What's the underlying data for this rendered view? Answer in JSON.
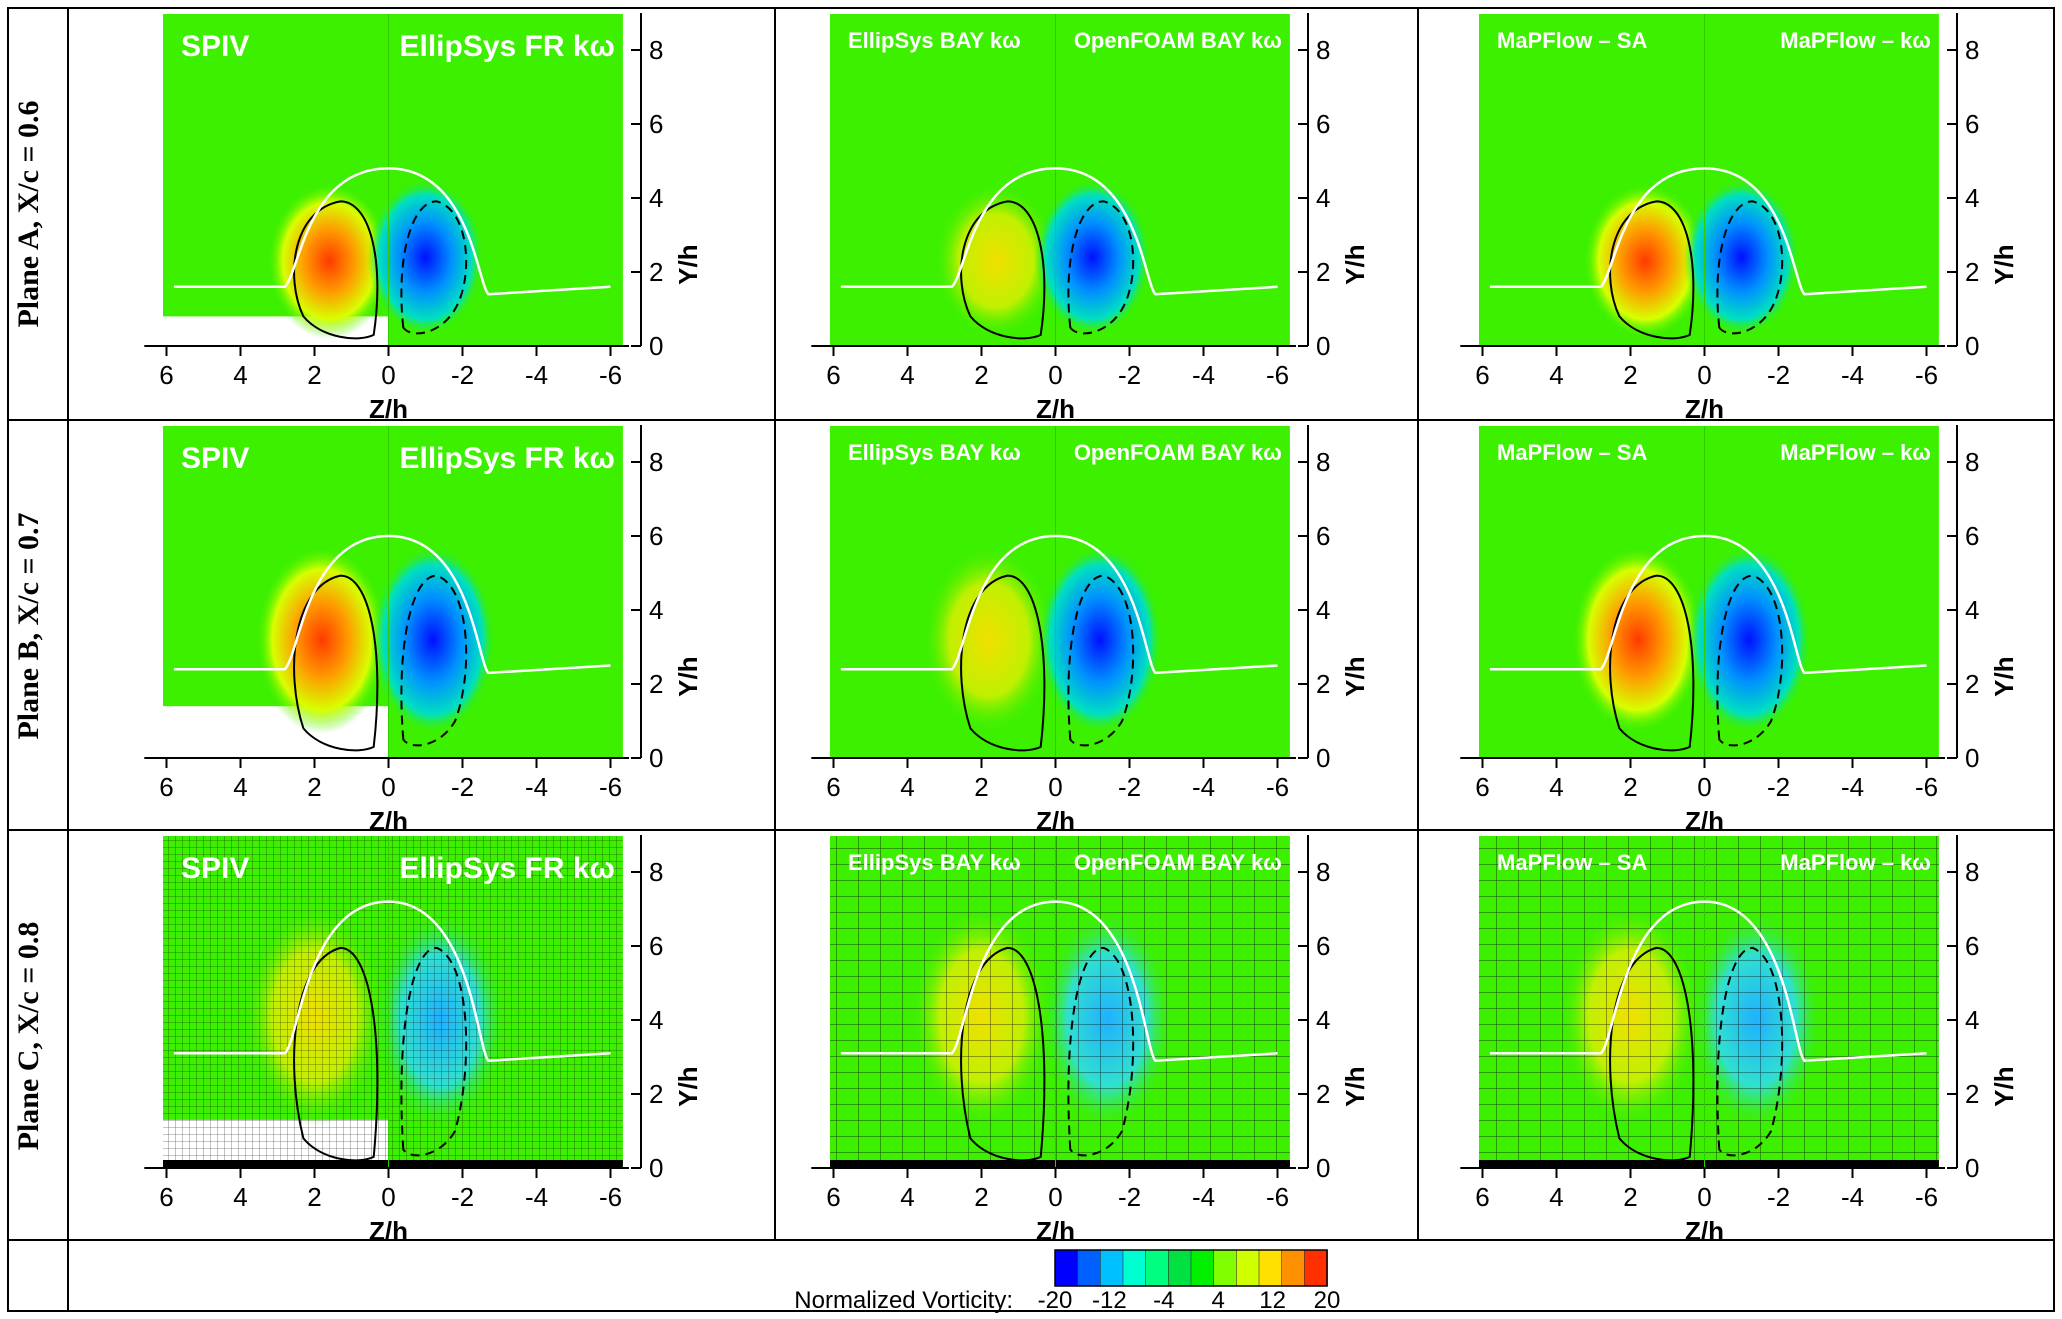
{
  "rows": [
    {
      "label": "Plane A, X/c = 0.6",
      "white_pos": [
        5.8,
        1.6
      ],
      "white_neg": [
        -0.3,
        1.4
      ],
      "contour_peak": 4.6
    },
    {
      "label": "Plane B, X/c = 0.7",
      "white_pos": [
        5.8,
        2.4
      ],
      "white_neg": [
        -0.5,
        2.3
      ],
      "contour_peak": 5.8
    },
    {
      "label": "Plane C, X/c = 0.8",
      "white_pos": [
        5.8,
        3.1
      ],
      "white_neg": [
        -0.5,
        2.9
      ],
      "contour_peak": 7.0
    }
  ],
  "columns": [
    {
      "left": "SPIV",
      "right": "EllipSys FR kω",
      "size": "large"
    },
    {
      "left": "EllipSys BAY kω",
      "right": "OpenFOAM BAY kω",
      "size": "small"
    },
    {
      "left": "MaPFlow – SA",
      "right": "MaPFlow – kω",
      "size": "small"
    }
  ],
  "axes": {
    "xlabel": "Z/h",
    "ylabel": "Y/h",
    "x_ticks": [
      "6",
      "4",
      "2",
      "0",
      "-2",
      "-4",
      "-6"
    ],
    "y_ticks": [
      "0",
      "2",
      "4",
      "6",
      "8"
    ],
    "xlim": [
      6.5,
      -6.5
    ],
    "ylim": [
      0,
      9
    ]
  },
  "legend": {
    "title": "Normalized Vorticity:",
    "ticks": [
      "-20",
      "-12",
      "-4",
      "4",
      "12",
      "20"
    ],
    "range": [
      -20,
      20
    ],
    "colors": [
      "#0000ff",
      "#0060ff",
      "#00c0ff",
      "#00ffd0",
      "#00ff80",
      "#00e040",
      "#00f000",
      "#80ff00",
      "#d0ff00",
      "#ffe000",
      "#ff9000",
      "#ff3000"
    ]
  },
  "chart_data": {
    "type": "heatmap",
    "grid": {
      "rows": 3,
      "columns": 3
    },
    "xlabel": "Z/h",
    "ylabel": "Y/h",
    "xlim": [
      6.5,
      -6.5
    ],
    "ylim": [
      0,
      9
    ],
    "colorbar": {
      "label": "Normalized Vorticity:",
      "range": [
        -20,
        20
      ],
      "ticks": [
        -20,
        -12,
        -4,
        4,
        12,
        20
      ]
    },
    "panels": [
      {
        "row": "Plane A, X/c = 0.6",
        "left": "SPIV",
        "right": "EllipSys FR kω",
        "pos_peak": 16,
        "neg_peak": -20
      },
      {
        "row": "Plane A, X/c = 0.6",
        "left": "EllipSys BAY kω",
        "right": "OpenFOAM BAY kω",
        "pos_peak": 8,
        "neg_peak": -20
      },
      {
        "row": "Plane A, X/c = 0.6",
        "left": "MaPFlow – SA",
        "right": "MaPFlow – kω",
        "pos_peak": 15,
        "neg_peak": -16
      },
      {
        "row": "Plane B, X/c = 0.7",
        "left": "SPIV",
        "right": "EllipSys FR kω",
        "pos_peak": 14,
        "neg_peak": -14
      },
      {
        "row": "Plane B, X/c = 0.7",
        "left": "EllipSys BAY kω",
        "right": "OpenFOAM BAY kω",
        "pos_peak": 6,
        "neg_peak": -16
      },
      {
        "row": "Plane B, X/c = 0.7",
        "left": "MaPFlow – SA",
        "right": "MaPFlow – kω",
        "pos_peak": 13,
        "neg_peak": -14
      },
      {
        "row": "Plane C, X/c = 0.8",
        "left": "SPIV",
        "right": "EllipSys FR kω",
        "pos_peak": 10,
        "neg_peak": -10
      },
      {
        "row": "Plane C, X/c = 0.8",
        "left": "EllipSys BAY kω",
        "right": "OpenFOAM BAY kω",
        "pos_peak": 8,
        "neg_peak": -11
      },
      {
        "row": "Plane C, X/c = 0.8",
        "left": "MaPFlow – SA",
        "right": "MaPFlow – kω",
        "pos_peak": 9,
        "neg_peak": -11
      }
    ]
  }
}
